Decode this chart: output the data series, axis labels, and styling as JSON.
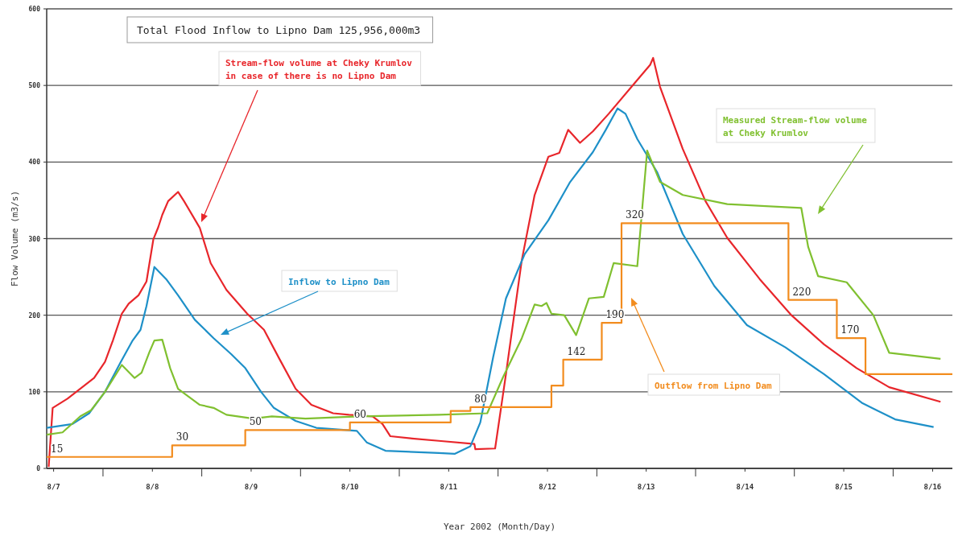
{
  "chart_data": {
    "type": "line",
    "title": "Total Flood Inflow to Lipno Dam 125,956,000m3",
    "xlabel": "Year 2002 (Month/Day)",
    "ylabel": "Flow Volume (m3/s)",
    "xlim": [
      "2002-08-07T10:19",
      "2002-08-16T14:24"
    ],
    "ylim": [
      0,
      600
    ],
    "yticks": [
      0,
      100,
      200,
      300,
      400,
      500,
      600
    ],
    "xticks": [
      {
        "value": "2002-08-07T12:00",
        "label": "8/7"
      },
      {
        "value": "2002-08-08",
        "label": null
      },
      {
        "value": "2002-08-08T12:00",
        "label": "8/8"
      },
      {
        "value": "2002-08-09",
        "label": null
      },
      {
        "value": "2002-08-09T12:00",
        "label": "8/9"
      },
      {
        "value": "2002-08-10",
        "label": null
      },
      {
        "value": "2002-08-10T12:00",
        "label": "8/10"
      },
      {
        "value": "2002-08-11",
        "label": null
      },
      {
        "value": "2002-08-11T12:00",
        "label": "8/11"
      },
      {
        "value": "2002-08-12",
        "label": null
      },
      {
        "value": "2002-08-12T12:00",
        "label": "8/12"
      },
      {
        "value": "2002-08-13",
        "label": null
      },
      {
        "value": "2002-08-13T12:00",
        "label": "8/13"
      },
      {
        "value": "2002-08-14",
        "label": null
      },
      {
        "value": "2002-08-14T12:00",
        "label": "8/14"
      },
      {
        "value": "2002-08-15",
        "label": null
      },
      {
        "value": "2002-08-15T12:00",
        "label": "8/15"
      },
      {
        "value": "2002-08-16",
        "label": null
      },
      {
        "value": "2002-08-16T09:36",
        "label": "8/16"
      }
    ],
    "grid": "y",
    "series": [
      {
        "name": "Stream-flow volume at Cheky Krumlov in case of there is no Lipno Dam",
        "color": "#e8262b",
        "x": [
          "2002-08-07T10:48",
          "2002-08-07T11:46",
          "2002-08-07T15:22",
          "2002-08-07T19:12",
          "2002-08-07T21:50",
          "2002-08-08T00:29",
          "2002-08-08T02:24",
          "2002-08-08T04:34",
          "2002-08-08T06:14",
          "2002-08-08T08:38",
          "2002-08-08T10:34",
          "2002-08-08T12:14",
          "2002-08-08T13:26",
          "2002-08-08T14:24",
          "2002-08-08T15:50",
          "2002-08-08T18:14",
          "2002-08-08T19:41",
          "2002-08-08T23:31",
          "2002-08-09T02:10",
          "2002-08-09T06:00",
          "2002-08-09T11:02",
          "2002-08-09T15:07",
          "2002-08-09T18:58",
          "2002-08-09T22:48",
          "2002-08-10T02:38",
          "2002-08-10T07:55",
          "2002-08-10T11:46",
          "2002-08-10T17:31",
          "2002-08-10T19:55",
          "2002-08-10T21:50",
          "2002-08-11T03:07",
          "2002-08-11T09:36",
          "2002-08-11T18:14",
          "2002-08-11T18:29",
          "2002-08-11T23:17",
          "2002-08-12T01:55",
          "2002-08-12T05:46",
          "2002-08-12T08:53",
          "2002-08-12T12:14",
          "2002-08-12T14:53",
          "2002-08-12T17:02",
          "2002-08-12T19:55",
          "2002-08-12T23:02",
          "2002-08-13T02:53",
          "2002-08-13T08:24",
          "2002-08-13T12:58",
          "2002-08-13T13:41",
          "2002-08-13T15:22",
          "2002-08-13T20:53",
          "2002-08-14T02:24",
          "2002-08-14T07:41",
          "2002-08-14T15:36",
          "2002-08-14T23:17",
          "2002-08-15T07:12",
          "2002-08-15T15:07",
          "2002-08-15T23:02",
          "2002-08-16T11:31"
        ],
        "values": [
          2,
          79,
          91,
          107,
          118,
          139,
          167,
          202,
          215,
          226,
          244,
          299,
          315,
          331,
          349,
          361,
          349,
          314,
          268,
          233,
          202,
          181,
          142,
          104,
          83,
          72,
          70,
          68,
          58,
          42,
          39,
          36,
          32,
          25,
          26,
          123,
          272,
          357,
          407,
          412,
          442,
          425,
          440,
          463,
          498,
          527,
          536,
          498,
          417,
          349,
          301,
          247,
          200,
          162,
          131,
          106,
          87
        ]
      },
      {
        "name": "Inflow to Lipno Dam",
        "color": "#1e90c8",
        "x": [
          "2002-08-07T10:19",
          "2002-08-07T16:34",
          "2002-08-07T20:38",
          "2002-08-08T00:29",
          "2002-08-08T04:19",
          "2002-08-08T07:12",
          "2002-08-08T09:07",
          "2002-08-08T10:34",
          "2002-08-08T12:29",
          "2002-08-08T15:22",
          "2002-08-08T18:14",
          "2002-08-08T22:19",
          "2002-08-09T02:53",
          "2002-08-09T07:12",
          "2002-08-09T10:34",
          "2002-08-09T14:24",
          "2002-08-09T17:31",
          "2002-08-09T22:48",
          "2002-08-10T03:50",
          "2002-08-10T13:41",
          "2002-08-10T16:05",
          "2002-08-10T20:38",
          "2002-08-11T09:36",
          "2002-08-11T13:26",
          "2002-08-11T17:17",
          "2002-08-11T19:41",
          "2002-08-11T22:48",
          "2002-08-12T01:55",
          "2002-08-12T06:29",
          "2002-08-12T12:14",
          "2002-08-12T17:31",
          "2002-08-12T23:02",
          "2002-08-13T02:10",
          "2002-08-13T05:02",
          "2002-08-13T06:58",
          "2002-08-13T09:50",
          "2002-08-13T14:38",
          "2002-08-13T20:53",
          "2002-08-14T04:34",
          "2002-08-14T12:29",
          "2002-08-14T21:50",
          "2002-08-15T07:12",
          "2002-08-15T16:34",
          "2002-08-16T00:29",
          "2002-08-16T09:50"
        ],
        "values": [
          53,
          58,
          72,
          100,
          139,
          167,
          181,
          212,
          263,
          247,
          226,
          194,
          170,
          149,
          131,
          100,
          79,
          62,
          53,
          49,
          34,
          23,
          20,
          19,
          29,
          60,
          145,
          222,
          280,
          324,
          374,
          413,
          442,
          470,
          463,
          430,
          387,
          306,
          238,
          187,
          158,
          123,
          85,
          64,
          54
        ]
      },
      {
        "name": "Measured Stream-flow volume at Cheky Krumlov",
        "color": "#80c030",
        "x": [
          "2002-08-07T10:19",
          "2002-08-07T14:10",
          "2002-08-07T18:29",
          "2002-08-07T21:07",
          "2002-08-08T00:29",
          "2002-08-08T04:34",
          "2002-08-08T07:41",
          "2002-08-08T09:22",
          "2002-08-08T11:17",
          "2002-08-08T12:29",
          "2002-08-08T14:24",
          "2002-08-08T16:19",
          "2002-08-08T18:14",
          "2002-08-08T23:31",
          "2002-08-09T02:53",
          "2002-08-09T06:00",
          "2002-08-09T12:29",
          "2002-08-09T17:02",
          "2002-08-10T01:12",
          "2002-08-10T14:10",
          "2002-08-11T09:36",
          "2002-08-11T21:22",
          "2002-08-12T01:12",
          "2002-08-12T05:46",
          "2002-08-12T08:53",
          "2002-08-12T10:34",
          "2002-08-12T11:46",
          "2002-08-12T12:58",
          "2002-08-12T16:05",
          "2002-08-12T18:58",
          "2002-08-12T22:05",
          "2002-08-13T01:41",
          "2002-08-13T04:05",
          "2002-08-13T09:50",
          "2002-08-13T12:14",
          "2002-08-13T15:22",
          "2002-08-13T20:53",
          "2002-08-14T07:41",
          "2002-08-15T01:41",
          "2002-08-15T03:22",
          "2002-08-15T05:46",
          "2002-08-15T12:43",
          "2002-08-15T19:12",
          "2002-08-15T23:02",
          "2002-08-16T11:31"
        ],
        "values": [
          44,
          47,
          68,
          76,
          100,
          135,
          118,
          125,
          152,
          167,
          168,
          131,
          104,
          83,
          79,
          70,
          65,
          68,
          65,
          68,
          70,
          72,
          119,
          170,
          214,
          212,
          216,
          202,
          200,
          174,
          222,
          224,
          268,
          264,
          415,
          374,
          357,
          345,
          340,
          289,
          251,
          243,
          200,
          151,
          143
        ]
      },
      {
        "name": "Outflow from Lipno Dam",
        "color": "#f28c1e",
        "type": "step",
        "x": [
          "2002-08-07T10:19",
          "2002-08-08T16:48",
          "2002-08-09T10:34",
          "2002-08-10T12:00",
          "2002-08-11T12:29",
          "2002-08-11T17:17",
          "2002-08-12T12:58",
          "2002-08-12T15:50",
          "2002-08-13T01:12",
          "2002-08-13T06:00",
          "2002-08-14T22:34",
          "2002-08-15T10:19",
          "2002-08-15T17:17",
          "2002-08-16T14:24"
        ],
        "values": [
          15,
          30,
          50,
          60,
          75,
          80,
          108,
          142,
          190,
          320,
          220,
          170,
          123,
          123
        ],
        "value_labels": [
          "15",
          "30",
          "50",
          "60",
          null,
          "80",
          null,
          "142",
          "190",
          "320",
          "220",
          "170",
          null,
          null
        ]
      }
    ]
  }
}
